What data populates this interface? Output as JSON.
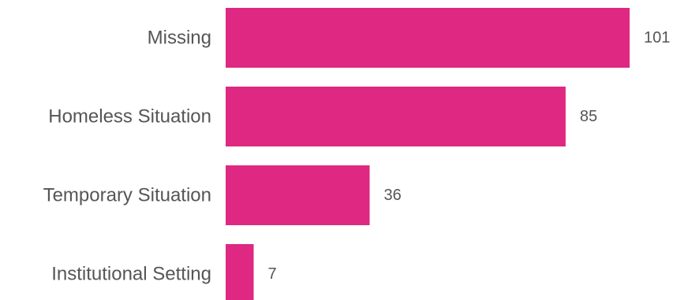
{
  "chart_data": {
    "type": "bar",
    "orientation": "horizontal",
    "categories": [
      "Missing",
      "Homeless Situation",
      "Temporary Situation",
      "Institutional Setting"
    ],
    "values": [
      101,
      85,
      36,
      7
    ],
    "value_labels": [
      "101",
      "85",
      "36",
      "7"
    ],
    "title": "",
    "xlabel": "",
    "ylabel": "",
    "xlim": [
      0,
      101
    ],
    "grid": false,
    "legend": "none",
    "bar_color": "#DE2882"
  }
}
